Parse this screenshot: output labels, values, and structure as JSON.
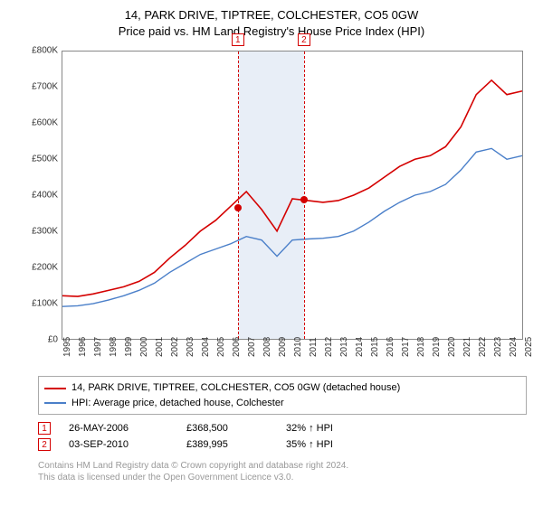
{
  "title_line1": "14, PARK DRIVE, TIPTREE, COLCHESTER, CO5 0GW",
  "title_line2": "Price paid vs. HM Land Registry's House Price Index (HPI)",
  "chart": {
    "type": "line",
    "x_years": [
      1995,
      1996,
      1997,
      1998,
      1999,
      2000,
      2001,
      2002,
      2003,
      2004,
      2005,
      2006,
      2007,
      2008,
      2009,
      2010,
      2011,
      2012,
      2013,
      2014,
      2015,
      2016,
      2017,
      2018,
      2019,
      2020,
      2021,
      2022,
      2023,
      2024,
      2025
    ],
    "ylim_max": 800000,
    "ylim_min": 0,
    "ytick_step": 100000,
    "yticks": [
      "£0",
      "£100K",
      "£200K",
      "£300K",
      "£400K",
      "£500K",
      "£600K",
      "£700K",
      "£800K"
    ],
    "series": [
      {
        "name": "subject",
        "color": "#d40000",
        "width": 1.6,
        "values": [
          120000,
          118000,
          125000,
          135000,
          145000,
          160000,
          185000,
          225000,
          260000,
          300000,
          330000,
          370000,
          410000,
          360000,
          300000,
          390000,
          385000,
          380000,
          385000,
          400000,
          420000,
          450000,
          480000,
          500000,
          510000,
          535000,
          590000,
          680000,
          720000,
          680000,
          690000
        ]
      },
      {
        "name": "hpi",
        "color": "#4a7fc9",
        "width": 1.4,
        "values": [
          90000,
          92000,
          98000,
          108000,
          120000,
          135000,
          155000,
          185000,
          210000,
          235000,
          250000,
          265000,
          285000,
          275000,
          230000,
          275000,
          278000,
          280000,
          285000,
          300000,
          325000,
          355000,
          380000,
          400000,
          410000,
          430000,
          470000,
          520000,
          530000,
          500000,
          510000
        ]
      }
    ],
    "shade": {
      "from_year": 2006.4,
      "to_year": 2010.7,
      "color": "#e8eef7"
    },
    "event_lines": [
      {
        "year": 2006.4,
        "color": "#d40000",
        "label": "1"
      },
      {
        "year": 2010.7,
        "color": "#d40000",
        "label": "2"
      }
    ],
    "sale_dots": [
      {
        "year": 2006.4,
        "value": 368500,
        "color": "#d40000"
      },
      {
        "year": 2010.7,
        "value": 389995,
        "color": "#d40000"
      }
    ],
    "background_color": "#ffffff",
    "border_color": "#888888",
    "tick_fontsize": 10,
    "title_fontsize": 13
  },
  "legend": {
    "items": [
      {
        "color": "#d40000",
        "label": "14, PARK DRIVE, TIPTREE, COLCHESTER, CO5 0GW (detached house)"
      },
      {
        "color": "#4a7fc9",
        "label": "HPI: Average price, detached house, Colchester"
      }
    ]
  },
  "sales": [
    {
      "marker": "1",
      "marker_color": "#d40000",
      "date": "26-MAY-2006",
      "price": "£368,500",
      "delta": "32% ↑ HPI"
    },
    {
      "marker": "2",
      "marker_color": "#d40000",
      "date": "03-SEP-2010",
      "price": "£389,995",
      "delta": "35% ↑ HPI"
    }
  ],
  "footer_line1": "Contains HM Land Registry data © Crown copyright and database right 2024.",
  "footer_line2": "This data is licensed under the Open Government Licence v3.0."
}
